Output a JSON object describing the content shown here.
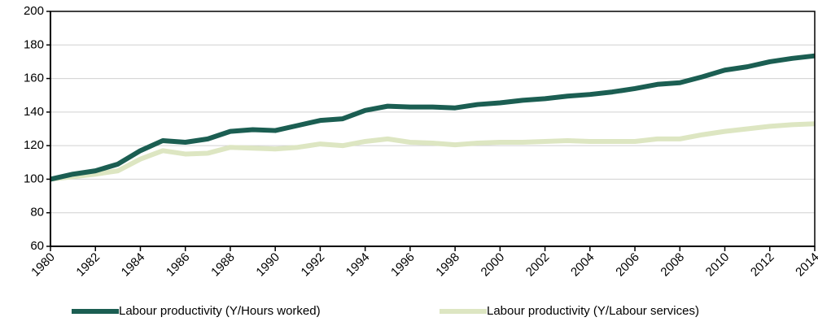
{
  "chart_data": {
    "type": "line",
    "x": [
      1980,
      1981,
      1982,
      1983,
      1984,
      1985,
      1986,
      1987,
      1988,
      1989,
      1990,
      1991,
      1992,
      1993,
      1994,
      1995,
      1996,
      1997,
      1998,
      1999,
      2000,
      2001,
      2002,
      2003,
      2004,
      2005,
      2006,
      2007,
      2008,
      2009,
      2010,
      2011,
      2012,
      2013,
      2014
    ],
    "series": [
      {
        "name": "Labour productivity (Y/Hours worked)",
        "color": "#1b5e52",
        "values": [
          100,
          103,
          105,
          109,
          117,
          123,
          122,
          124,
          128.5,
          129.5,
          129,
          132,
          135,
          136,
          141,
          143.5,
          143,
          143,
          142.5,
          144.5,
          145.5,
          147,
          148,
          149.5,
          150.5,
          152,
          154,
          156.5,
          157.5,
          161,
          165,
          167,
          170,
          172,
          173.5
        ]
      },
      {
        "name": "Labour productivity (Y/Labour services)",
        "color": "#dde6c2",
        "values": [
          100,
          101.5,
          103,
          105,
          112,
          117,
          115,
          115.5,
          119,
          118.5,
          118,
          119,
          121,
          120,
          122.5,
          124,
          122,
          121.5,
          120.5,
          121.5,
          122,
          122,
          122.5,
          123,
          122.5,
          122.5,
          122.5,
          124,
          124,
          126.5,
          128.5,
          130,
          131.5,
          132.5,
          133
        ]
      }
    ],
    "xlim": [
      1980,
      2014
    ],
    "xticks": [
      1980,
      1982,
      1984,
      1986,
      1988,
      1990,
      1992,
      1994,
      1996,
      1998,
      2000,
      2002,
      2004,
      2006,
      2008,
      2010,
      2012,
      2014
    ],
    "ylim": [
      60,
      200
    ],
    "yticks": [
      60,
      80,
      100,
      120,
      140,
      160,
      180,
      200
    ],
    "grid": true
  }
}
